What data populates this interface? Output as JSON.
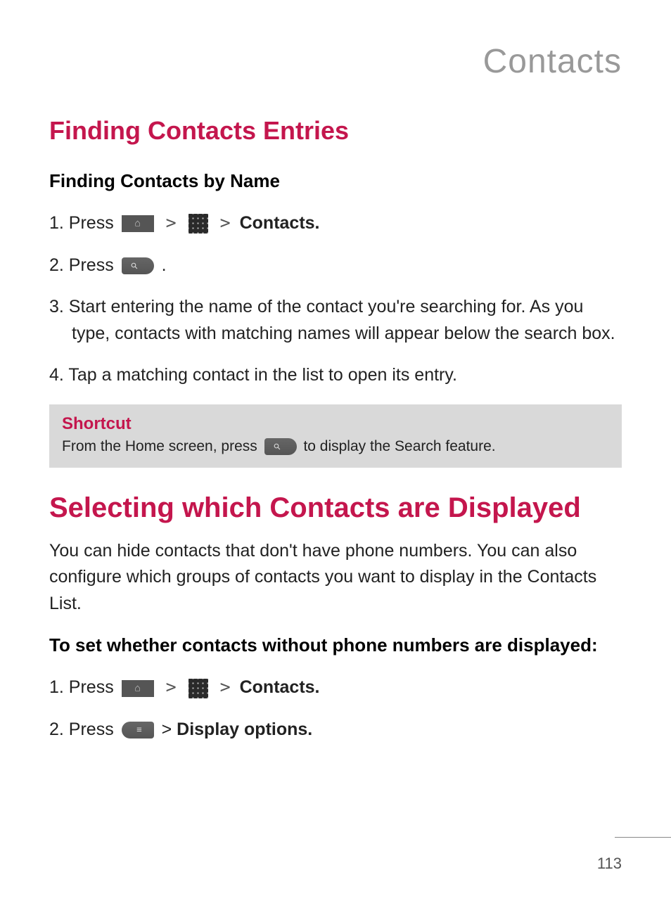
{
  "chapter_title": "Contacts",
  "section1": {
    "heading": "Finding Contacts Entries",
    "sub_heading": "Finding Contacts by Name",
    "step1_prefix": "1. Press ",
    "step1_suffix": " Contacts.",
    "step2_prefix": "2. Press ",
    "step2_suffix": " .",
    "step3": "3. Start entering the name of the contact you're searching for. As you type, contacts with matching names will appear below the search box.",
    "step4": "4. Tap a matching contact in the list to open its entry."
  },
  "shortcut": {
    "title": "Shortcut",
    "text_before": "From the Home screen, press ",
    "text_after": " to display the Search feature.",
    "box_bg": "#d9d9d9",
    "title_color": "#c4164d"
  },
  "section2": {
    "heading": "Selecting which Contacts are Displayed",
    "intro": "You can hide contacts that don't have phone numbers. You can also configure which groups of contacts you want to display in the Contacts List.",
    "sub_heading": "To set whether contacts without phone numbers are displayed:",
    "step1_prefix": "1. Press ",
    "step1_suffix": " Contacts.",
    "step2_prefix": "2. Press ",
    "step2_mid": " > ",
    "step2_suffix": "Display options."
  },
  "separator": ">",
  "page_number": "113",
  "colors": {
    "accent": "#c4164d",
    "chapter_gray": "#999999",
    "body_text": "#222222",
    "icon_bg": "#555555"
  },
  "typography": {
    "chapter_fontsize": 48,
    "section_fontsize": 36,
    "section_large_fontsize": 40,
    "subhead_fontsize": 26,
    "body_fontsize": 25,
    "shortcut_title_fontsize": 24,
    "shortcut_text_fontsize": 21,
    "page_number_fontsize": 22
  }
}
